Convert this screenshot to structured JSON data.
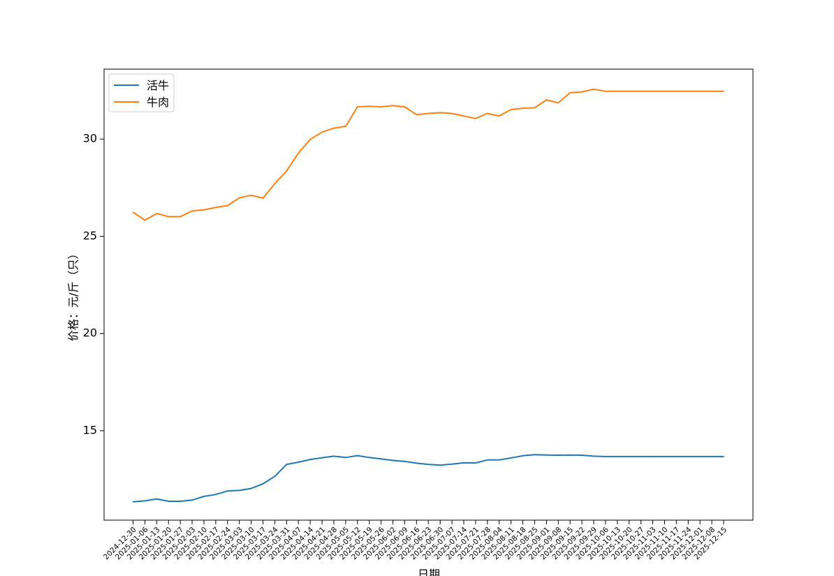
{
  "chart_data": {
    "type": "line",
    "title": "",
    "xlabel": "日期",
    "ylabel": "价格：元/斤（只）",
    "ylim": [
      10.4,
      33.6
    ],
    "yticks": [
      15,
      20,
      25,
      30
    ],
    "grid": false,
    "legend_position": "top-left",
    "x": [
      "2024-12-30",
      "2025-01-06",
      "2025-01-13",
      "2025-01-20",
      "2025-01-27",
      "2025-02-03",
      "2025-02-10",
      "2025-02-17",
      "2025-02-24",
      "2025-03-03",
      "2025-03-10",
      "2025-03-17",
      "2025-03-24",
      "2025-03-31",
      "2025-04-07",
      "2025-04-14",
      "2025-04-21",
      "2025-04-28",
      "2025-05-05",
      "2025-05-12",
      "2025-05-19",
      "2025-05-26",
      "2025-06-02",
      "2025-06-09",
      "2025-06-16",
      "2025-06-23",
      "2025-06-30",
      "2025-07-07",
      "2025-07-14",
      "2025-07-21",
      "2025-07-28",
      "2025-08-04",
      "2025-08-11",
      "2025-08-18",
      "2025-08-25",
      "2025-09-01",
      "2025-09-08",
      "2025-09-15",
      "2025-09-22",
      "2025-09-29",
      "2025-10-06",
      "2025-10-13",
      "2025-10-20",
      "2025-10-27",
      "2025-11-03",
      "2025-11-10",
      "2025-11-17",
      "2025-11-24",
      "2025-12-01",
      "2025-12-08",
      "2025-12-15"
    ],
    "series": [
      {
        "name": "活牛",
        "color": "#1f77b4",
        "values": [
          11.34,
          11.39,
          11.49,
          11.37,
          11.37,
          11.43,
          11.62,
          11.72,
          11.9,
          11.93,
          12.03,
          12.27,
          12.65,
          13.27,
          13.38,
          13.52,
          13.61,
          13.69,
          13.62,
          13.72,
          13.62,
          13.55,
          13.47,
          13.42,
          13.33,
          13.27,
          13.23,
          13.28,
          13.35,
          13.34,
          13.5,
          13.5,
          13.6,
          13.71,
          13.77,
          13.75,
          13.74,
          13.75,
          13.74,
          13.69,
          13.67,
          13.67,
          13.67,
          13.67,
          13.67,
          13.67,
          13.67,
          13.67,
          13.67,
          13.67,
          13.67
        ]
      },
      {
        "name": "牛肉",
        "color": "#ff7f0e",
        "values": [
          26.24,
          25.83,
          26.17,
          26.01,
          26.01,
          26.31,
          26.36,
          26.49,
          26.58,
          26.98,
          27.11,
          26.96,
          27.71,
          28.36,
          29.28,
          29.98,
          30.36,
          30.56,
          30.66,
          31.66,
          31.69,
          31.66,
          31.72,
          31.66,
          31.26,
          31.32,
          31.36,
          31.32,
          31.19,
          31.06,
          31.32,
          31.19,
          31.52,
          31.59,
          31.61,
          32.02,
          31.87,
          32.39,
          32.43,
          32.57,
          32.46,
          32.46,
          32.46,
          32.46,
          32.46,
          32.46,
          32.46,
          32.46,
          32.46,
          32.46,
          32.46
        ]
      }
    ]
  }
}
